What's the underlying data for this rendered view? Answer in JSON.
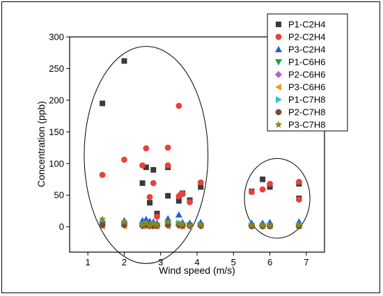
{
  "chart_data": {
    "type": "scatter",
    "title": "",
    "xlabel": "Wind speed (m/s)",
    "ylabel": "Concentration (ppb)",
    "xlim": [
      0.5,
      7.5
    ],
    "ylim": [
      -40,
      300
    ],
    "xticks": [
      1,
      2,
      3,
      4,
      5,
      6,
      7
    ],
    "yticks": [
      0,
      50,
      100,
      150,
      200,
      250,
      300
    ],
    "grid": false,
    "legend_position": "top-right",
    "series": [
      {
        "name": "P1-C2H4",
        "marker": "square",
        "color": "#3a3a3a",
        "x": [
          1.4,
          2.0,
          2.5,
          2.6,
          2.7,
          2.8,
          2.9,
          3.2,
          3.2,
          3.5,
          3.6,
          3.8,
          4.1,
          5.5,
          5.8,
          6.0,
          6.8,
          6.8
        ],
        "y": [
          195,
          262,
          69,
          94,
          38,
          90,
          21,
          49,
          94,
          41,
          53,
          42,
          63,
          56,
          75,
          63,
          45,
          68
        ]
      },
      {
        "name": "P2-C2H4",
        "marker": "circle",
        "color": "#e8413a",
        "x": [
          1.4,
          2.0,
          2.5,
          2.6,
          2.7,
          2.8,
          2.9,
          3.2,
          3.2,
          3.5,
          3.5,
          3.55,
          3.6,
          3.8,
          4.1,
          5.5,
          5.8,
          6.0,
          6.8,
          6.8
        ],
        "y": [
          82,
          106,
          97,
          124,
          47,
          69,
          16,
          125,
          97,
          191,
          48,
          51,
          52,
          39,
          70,
          55,
          59,
          68,
          43,
          71
        ]
      },
      {
        "name": "P3-C2H4",
        "marker": "triangle-up",
        "color": "#1f5fd6",
        "x": [
          1.4,
          2.0,
          2.5,
          2.6,
          2.7,
          2.8,
          2.9,
          3.2,
          3.5,
          3.6,
          3.8,
          4.1,
          5.5,
          5.8,
          6.0,
          6.8
        ],
        "y": [
          11,
          10,
          10,
          12,
          9,
          8,
          6,
          13,
          19,
          7,
          6,
          7,
          6,
          6,
          7,
          8
        ]
      },
      {
        "name": "P1-C6H6",
        "marker": "triangle-down",
        "color": "#1fa05a",
        "x": [
          1.4,
          2.0,
          2.5,
          2.6,
          2.7,
          2.8,
          2.9,
          3.2,
          3.5,
          3.6,
          3.8,
          4.1,
          5.5,
          5.8,
          6.0,
          6.8
        ],
        "y": [
          3,
          3,
          2,
          3,
          2,
          2,
          2,
          3,
          3,
          2,
          2,
          2,
          1,
          1,
          1,
          1
        ]
      },
      {
        "name": "P2-C6H6",
        "marker": "diamond",
        "color": "#b45be0",
        "x": [
          1.4,
          2.0,
          2.5,
          2.6,
          2.7,
          2.8,
          2.9,
          3.2,
          3.5,
          3.6,
          3.8,
          4.1,
          5.5,
          5.8,
          6.0,
          6.8
        ],
        "y": [
          2,
          2,
          1,
          2,
          1,
          1,
          1,
          2,
          2,
          1,
          1,
          1,
          1,
          1,
          1,
          1
        ]
      },
      {
        "name": "P3-C6H6",
        "marker": "triangle-left",
        "color": "#e3a21a",
        "x": [
          1.4,
          2.0,
          2.5,
          2.6,
          2.7,
          2.8,
          2.9,
          3.2,
          3.5,
          3.6,
          3.8,
          4.1,
          5.5,
          5.8,
          6.0,
          6.8
        ],
        "y": [
          1,
          1,
          1,
          1,
          1,
          1,
          1,
          1,
          1,
          1,
          1,
          1,
          1,
          1,
          1,
          1
        ]
      },
      {
        "name": "P1-C7H8",
        "marker": "triangle-right",
        "color": "#1ec8d8",
        "x": [
          1.4,
          2.0,
          2.5,
          2.6,
          2.7,
          2.8,
          2.9,
          3.2,
          3.5,
          3.6,
          3.8,
          4.1,
          5.5,
          5.8,
          6.0,
          6.8
        ],
        "y": [
          6,
          5,
          4,
          5,
          4,
          4,
          3,
          5,
          6,
          4,
          3,
          4,
          2,
          2,
          2,
          2
        ]
      },
      {
        "name": "P2-C7H8",
        "marker": "circle",
        "color": "#7a4a3a",
        "x": [
          1.4,
          2.0,
          2.5,
          2.6,
          2.7,
          2.8,
          2.9,
          3.2,
          3.5,
          3.6,
          3.8,
          4.1,
          5.5,
          5.8,
          6.0,
          6.8
        ],
        "y": [
          3,
          3,
          2,
          3,
          2,
          2,
          2,
          3,
          3,
          2,
          2,
          2,
          1,
          1,
          1,
          1
        ]
      },
      {
        "name": "P3-C7H8",
        "marker": "star",
        "color": "#8a8a1a",
        "x": [
          1.4,
          2.0,
          2.5,
          2.6,
          2.7,
          2.8,
          2.9,
          3.2,
          3.5,
          3.6,
          3.8,
          4.1,
          5.5,
          5.8,
          6.0,
          6.8
        ],
        "y": [
          12,
          8,
          3,
          6,
          2,
          5,
          3,
          8,
          5,
          4,
          2,
          3,
          2,
          2,
          2,
          3
        ]
      }
    ],
    "annotations": [
      {
        "shape": "ellipse",
        "x_range": [
          0.9,
          4.3
        ],
        "y_range": [
          -58,
          285
        ]
      },
      {
        "shape": "ellipse",
        "x_range": [
          5.3,
          7.1
        ],
        "y_range": [
          -18,
          108
        ]
      }
    ]
  }
}
